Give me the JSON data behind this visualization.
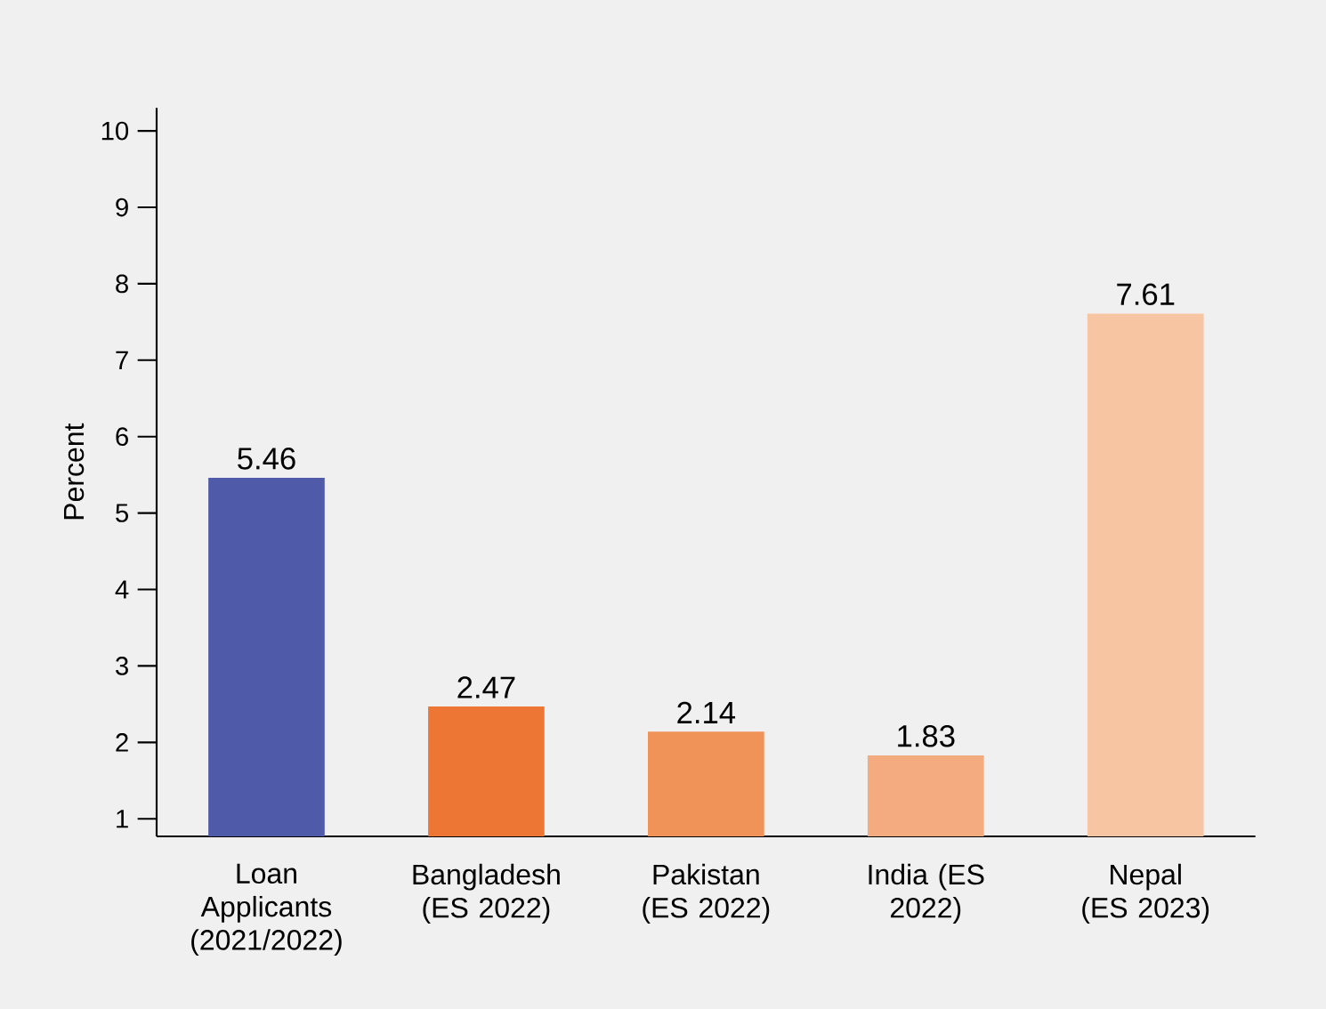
{
  "chart_data": {
    "type": "bar",
    "ylabel": "Percent",
    "categories": [
      "Loan Applicants (2021/2022)",
      "Bangladesh (ES 2022)",
      "Pakistan (ES 2022)",
      "India (ES 2022)",
      "Nepal (ES 2023)"
    ],
    "values": [
      5.46,
      2.47,
      2.14,
      1.83,
      7.61
    ],
    "colors": [
      "#4f5ba9",
      "#ee7634",
      "#f09358",
      "#f4ab80",
      "#f8c5a3"
    ],
    "ylim": [
      0.77,
      10.3
    ],
    "yticks": [
      1,
      2,
      3,
      4,
      5,
      6,
      7,
      8,
      9,
      10
    ],
    "data_labels": true,
    "grid": false
  }
}
